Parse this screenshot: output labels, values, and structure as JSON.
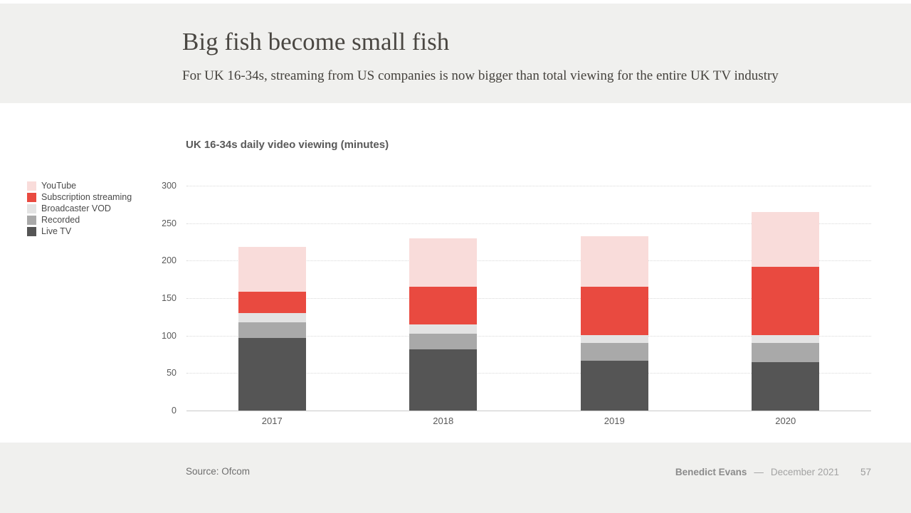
{
  "slide": {
    "title": "Big fish become small fish",
    "subtitle": "For UK 16-34s, streaming from US companies is now bigger than total viewing for the entire UK TV industry"
  },
  "chart_data": {
    "type": "bar",
    "stacked": true,
    "title": "UK 16-34s daily video viewing (minutes)",
    "categories": [
      "2017",
      "2018",
      "2019",
      "2020"
    ],
    "series": [
      {
        "name": "Live TV",
        "color": "#555555",
        "values": [
          97,
          82,
          66,
          65
        ]
      },
      {
        "name": "Recorded",
        "color": "#a9a9a9",
        "values": [
          21,
          21,
          24,
          25
        ]
      },
      {
        "name": "Broadcaster VOD",
        "color": "#e3e3e3",
        "values": [
          12,
          12,
          11,
          11
        ]
      },
      {
        "name": "Subscription streaming",
        "color": "#e94a40",
        "values": [
          29,
          50,
          64,
          91
        ]
      },
      {
        "name": "YouTube",
        "color": "#f9dcda",
        "values": [
          59,
          65,
          68,
          73
        ]
      }
    ],
    "totals": [
      218,
      230,
      233,
      265
    ],
    "legend_order": [
      "YouTube",
      "Subscription streaming",
      "Broadcaster VOD",
      "Recorded",
      "Live TV"
    ],
    "legend_position": "left",
    "y_ticks": [
      0,
      50,
      100,
      150,
      200,
      250,
      300
    ],
    "ylim": [
      0,
      300
    ],
    "xlabel": "",
    "ylabel": "",
    "grid": "horizontal-dotted"
  },
  "footer": {
    "source": "Source: Ofcom",
    "author": "Benedict Evans",
    "separator": "—",
    "date": "December 2021",
    "page_number": "57"
  },
  "colors": {
    "band_background": "#f0f0ee",
    "title_text": "#4a4742",
    "axis_text": "#595959",
    "gridline": "#d9d9d9",
    "baseline": "#c9c9c9"
  }
}
